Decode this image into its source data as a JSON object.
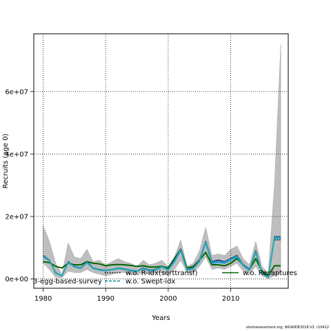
{
  "chart_data": {
    "type": "line",
    "xlabel": "Years",
    "ylabel": "Recruits (age 0)",
    "xlim": [
      1978.5,
      2019.2
    ],
    "ylim": [
      -3000000,
      78500000
    ],
    "x_ticks": [
      1980,
      1990,
      2000,
      2010
    ],
    "y_ticks": [
      0,
      20000000,
      40000000,
      60000000
    ],
    "y_tick_labels": [
      "0e+00",
      "2e+07",
      "4e+07",
      "6e+07"
    ],
    "grid": "dotted",
    "legend": "bottom, inside plot",
    "x": [
      1980,
      1981,
      1982,
      1983,
      1984,
      1985,
      1986,
      1987,
      1988,
      1989,
      1990,
      1991,
      1992,
      1993,
      1994,
      1995,
      1996,
      1997,
      1998,
      1999,
      2000,
      2001,
      2002,
      2003,
      2004,
      2005,
      2006,
      2007,
      2008,
      2009,
      2010,
      2011,
      2012,
      2013,
      2014,
      2015,
      2016,
      2017,
      2018
    ],
    "confidence_band": {
      "upper": [
        17000000,
        12000000,
        5000000,
        1500000,
        11500000,
        7000000,
        6500000,
        9500000,
        5500000,
        6000000,
        4500000,
        5500000,
        6500000,
        5500000,
        5000000,
        4000000,
        6000000,
        4500000,
        5000000,
        6000000,
        4000000,
        7000000,
        12500000,
        4000000,
        5000000,
        9000000,
        16500000,
        7500000,
        8000000,
        7500000,
        9500000,
        10500000,
        6500000,
        4500000,
        12000000,
        4000000,
        2000000,
        30000000,
        75000000
      ],
      "lower": [
        5000000,
        3000000,
        500000,
        300000,
        2500000,
        2000000,
        2000000,
        3000000,
        2000000,
        1500000,
        1000000,
        1500000,
        2000000,
        2000000,
        1500000,
        1500000,
        2000000,
        1500000,
        2000000,
        2000000,
        1500000,
        3000000,
        6000000,
        2000000,
        2000000,
        4000000,
        7000000,
        3000000,
        3500000,
        3000000,
        4000000,
        5000000,
        2500000,
        1500000,
        4000000,
        1000000,
        100000,
        1000000,
        2000000
      ],
      "color": "#bebebe"
    },
    "series": [
      {
        "name": "w.o. Recaptures",
        "color": "#006400",
        "dash": "solid",
        "values": [
          5500000,
          5200000,
          4000000,
          3500000,
          5000000,
          4500000,
          4500000,
          5500000,
          5000000,
          4800000,
          4200000,
          4500000,
          4600000,
          4500000,
          4300000,
          4000000,
          4200000,
          3800000,
          3800000,
          4000000,
          3500000,
          6500000,
          9500000,
          3500000,
          4000000,
          6000000,
          8500000,
          4500000,
          4500000,
          4200000,
          5000000,
          6500000,
          4500000,
          3000000,
          6500000,
          2500000,
          1000000,
          4200000,
          4200000
        ]
      },
      {
        "name": "",
        "color": "#1a1a8c",
        "dash": "solid",
        "values": [
          7500000,
          6000000,
          2000000,
          1000000,
          5500000,
          4000000,
          3500000,
          5500000,
          3500000,
          3000000,
          2800000,
          3000000,
          3500000,
          3200000,
          2800000,
          2500000,
          3500000,
          2800000,
          3000000,
          4000000,
          3000000,
          6000000,
          9500000,
          3000000,
          3500000,
          6000000,
          12000000,
          5500000,
          6000000,
          5500000,
          6500000,
          7500000,
          4500000,
          3000000,
          9000000,
          2000000,
          500000,
          13500000,
          13500000
        ]
      },
      {
        "name": "",
        "color": "#1e90ff",
        "dash": "solid",
        "values": [
          7000000,
          5800000,
          1800000,
          900000,
          5200000,
          3800000,
          3300000,
          5200000,
          3300000,
          2800000,
          2600000,
          2900000,
          3300000,
          3000000,
          2600000,
          2400000,
          3200000,
          2600000,
          2800000,
          3800000,
          2800000,
          5500000,
          9000000,
          2800000,
          3200000,
          5500000,
          11500000,
          5000000,
          5300000,
          5000000,
          6000000,
          7000000,
          4200000,
          2700000,
          8500000,
          1800000,
          400000,
          13000000,
          13000000
        ]
      },
      {
        "name": "w.o. R-idx(sqrttransf)",
        "color": "#000000",
        "dash": "dotted",
        "values": [
          null,
          null,
          null,
          null,
          null,
          null,
          null,
          null,
          null,
          null,
          null,
          null,
          null,
          null,
          null,
          null,
          null,
          null,
          null,
          null,
          null,
          null,
          null,
          null,
          null,
          null,
          null,
          null,
          null,
          null,
          null,
          null,
          null,
          null,
          null,
          null,
          null,
          12500000,
          12500000
        ]
      },
      {
        "name": "w.o. Swept-idx",
        "color": "#008b8b",
        "dash": "dashed",
        "values": [
          7200000,
          5900000,
          1900000,
          950000,
          5300000,
          3900000,
          3400000,
          5300000,
          3400000,
          2900000,
          2700000,
          2950000,
          3400000,
          3100000,
          2700000,
          2450000,
          3300000,
          2700000,
          2900000,
          3900000,
          2900000,
          5700000,
          9200000,
          2900000,
          3300000,
          5700000,
          11700000,
          5200000,
          5500000,
          5200000,
          6200000,
          7200000,
          4300000,
          2800000,
          8700000,
          1900000,
          450000,
          13200000,
          13200000
        ]
      },
      {
        "name": "",
        "color": "#20b2aa",
        "dash": "solid",
        "values": [
          7300000,
          5950000,
          1950000,
          980000,
          5350000,
          3950000,
          3450000,
          5350000,
          3450000,
          2950000,
          2750000,
          3000000,
          3450000,
          3150000,
          2750000,
          2500000,
          3350000,
          2750000,
          2950000,
          3950000,
          2950000,
          5800000,
          9300000,
          2950000,
          3350000,
          5800000,
          11800000,
          5300000,
          5600000,
          5300000,
          6300000,
          7300000,
          4400000,
          2850000,
          8800000,
          1950000,
          480000,
          13300000,
          13300000
        ]
      }
    ],
    "legend_entries": [
      {
        "label": "3-egg-based-survey",
        "color": "#000000",
        "dash": "none"
      },
      {
        "label": "w.o. R-idx(sqrttransf)",
        "color": "#000000",
        "dash": "dotted"
      },
      {
        "label": "w.o. Recaptures",
        "color": "#006400",
        "dash": "solid"
      },
      {
        "label": "w.o. Swept-idx",
        "color": "#008b8b",
        "dash": "dashed"
      }
    ]
  },
  "footer": "stockassessment.org, WGWIDE2018.V2, r10412"
}
